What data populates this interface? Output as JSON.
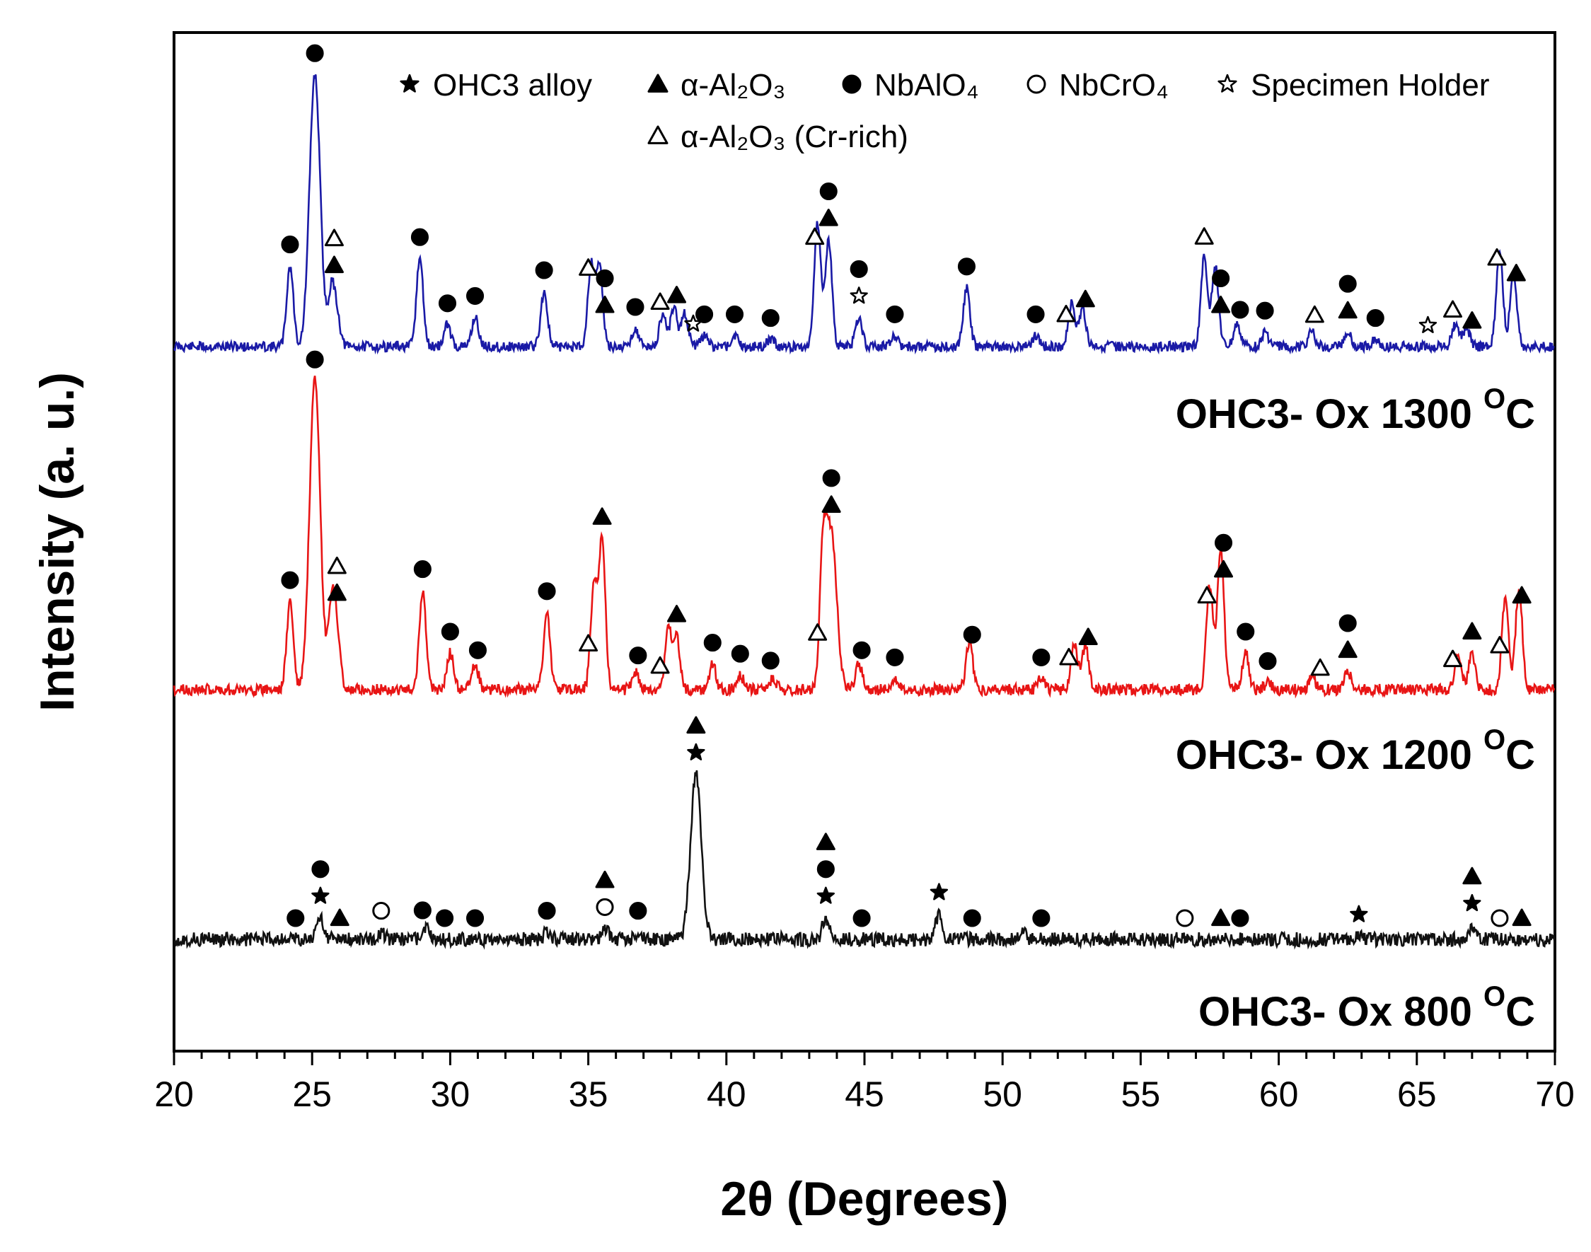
{
  "chart_data": {
    "type": "line",
    "title": "",
    "xlabel": "2θ (Degrees)",
    "ylabel": "Intensity (a. u.)",
    "xlim": [
      20,
      70
    ],
    "xticks": [
      "20",
      "25",
      "30",
      "35",
      "40",
      "45",
      "50",
      "55",
      "60",
      "65",
      "70"
    ],
    "xtick_values": [
      20,
      25,
      30,
      35,
      40,
      45,
      50,
      55,
      60,
      65,
      70
    ],
    "grid": false,
    "legend_position": "top",
    "legend": [
      {
        "symbol": "filled-star",
        "text": "OHC3 alloy"
      },
      {
        "symbol": "filled-triangle",
        "text": "α-Al₂O₃"
      },
      {
        "symbol": "filled-circle",
        "text": "NbAlO₄"
      },
      {
        "symbol": "open-circle",
        "text": "NbCrO₄"
      },
      {
        "symbol": "open-star",
        "text": "Specimen Holder"
      },
      {
        "symbol": "open-triangle",
        "text": "α-Al₂O₃ (Cr-rich)"
      }
    ],
    "series": [
      {
        "name": "OHC3- Ox 1300 °C",
        "label_main": "OHC3- Ox 1300 ",
        "label_sup": "O",
        "label_unit": "C",
        "color": "#1a1aa6",
        "baseline": 0.0,
        "peaks": [
          [
            24.2,
            0.22
          ],
          [
            25.1,
            0.74
          ],
          [
            25.7,
            0.15
          ],
          [
            25.9,
            0.08
          ],
          [
            28.9,
            0.24
          ],
          [
            29.9,
            0.06
          ],
          [
            30.9,
            0.08
          ],
          [
            33.4,
            0.15
          ],
          [
            35.1,
            0.22
          ],
          [
            35.4,
            0.22
          ],
          [
            36.7,
            0.05
          ],
          [
            37.7,
            0.09
          ],
          [
            38.1,
            0.11
          ],
          [
            38.5,
            0.09
          ],
          [
            39.2,
            0.03
          ],
          [
            40.3,
            0.03
          ],
          [
            41.6,
            0.02
          ],
          [
            43.3,
            0.34
          ],
          [
            43.7,
            0.29
          ],
          [
            44.8,
            0.08
          ],
          [
            46.1,
            0.03
          ],
          [
            48.7,
            0.16
          ],
          [
            51.2,
            0.03
          ],
          [
            52.5,
            0.12
          ],
          [
            52.9,
            0.1
          ],
          [
            57.3,
            0.24
          ],
          [
            57.7,
            0.22
          ],
          [
            58.5,
            0.06
          ],
          [
            59.5,
            0.04
          ],
          [
            61.2,
            0.04
          ],
          [
            62.5,
            0.04
          ],
          [
            63.5,
            0.02
          ],
          [
            66.4,
            0.06
          ],
          [
            66.8,
            0.05
          ],
          [
            68.0,
            0.26
          ],
          [
            68.5,
            0.2
          ]
        ],
        "markers": [
          {
            "x": 24.2,
            "symbol": "filled-circle",
            "level": 1
          },
          {
            "x": 25.1,
            "symbol": "filled-circle",
            "level": 1
          },
          {
            "x": 25.8,
            "symbol": "filled-triangle",
            "level": 1
          },
          {
            "x": 25.8,
            "symbol": "open-triangle",
            "level": 2
          },
          {
            "x": 28.9,
            "symbol": "filled-circle",
            "level": 1
          },
          {
            "x": 29.9,
            "symbol": "filled-circle",
            "level": 1
          },
          {
            "x": 30.9,
            "symbol": "filled-circle",
            "level": 1
          },
          {
            "x": 33.4,
            "symbol": "filled-circle",
            "level": 1
          },
          {
            "x": 35.0,
            "symbol": "open-triangle",
            "level": 1
          },
          {
            "x": 35.6,
            "symbol": "filled-triangle",
            "level": 1
          },
          {
            "x": 35.6,
            "symbol": "filled-circle",
            "level": 2
          },
          {
            "x": 36.7,
            "symbol": "filled-circle",
            "level": 1
          },
          {
            "x": 37.6,
            "symbol": "open-triangle",
            "level": 1
          },
          {
            "x": 38.2,
            "symbol": "filled-triangle",
            "level": 1
          },
          {
            "x": 38.8,
            "symbol": "open-star",
            "level": 1
          },
          {
            "x": 39.2,
            "symbol": "filled-circle",
            "level": 1
          },
          {
            "x": 40.3,
            "symbol": "filled-circle",
            "level": 1
          },
          {
            "x": 41.6,
            "symbol": "filled-circle",
            "level": 1
          },
          {
            "x": 43.2,
            "symbol": "open-triangle",
            "level": 1
          },
          {
            "x": 43.7,
            "symbol": "filled-triangle",
            "level": 1
          },
          {
            "x": 43.7,
            "symbol": "filled-circle",
            "level": 2
          },
          {
            "x": 44.8,
            "symbol": "open-star",
            "level": 1
          },
          {
            "x": 44.8,
            "symbol": "filled-circle",
            "level": 2
          },
          {
            "x": 46.1,
            "symbol": "filled-circle",
            "level": 1
          },
          {
            "x": 48.7,
            "symbol": "filled-circle",
            "level": 1
          },
          {
            "x": 51.2,
            "symbol": "filled-circle",
            "level": 1
          },
          {
            "x": 52.3,
            "symbol": "open-triangle",
            "level": 1
          },
          {
            "x": 53.0,
            "symbol": "filled-triangle",
            "level": 1
          },
          {
            "x": 57.3,
            "symbol": "open-triangle",
            "level": 1
          },
          {
            "x": 57.9,
            "symbol": "filled-triangle",
            "level": 1
          },
          {
            "x": 57.9,
            "symbol": "filled-circle",
            "level": 2
          },
          {
            "x": 58.6,
            "symbol": "filled-circle",
            "level": 1
          },
          {
            "x": 59.5,
            "symbol": "filled-circle",
            "level": 1
          },
          {
            "x": 61.3,
            "symbol": "open-triangle",
            "level": 1
          },
          {
            "x": 62.5,
            "symbol": "filled-triangle",
            "level": 1
          },
          {
            "x": 62.5,
            "symbol": "filled-circle",
            "level": 2
          },
          {
            "x": 63.5,
            "symbol": "filled-circle",
            "level": 1
          },
          {
            "x": 65.4,
            "symbol": "open-star",
            "level": 1
          },
          {
            "x": 66.3,
            "symbol": "open-triangle",
            "level": 1
          },
          {
            "x": 67.0,
            "symbol": "filled-triangle",
            "level": 1
          },
          {
            "x": 67.9,
            "symbol": "open-triangle",
            "level": 1
          },
          {
            "x": 68.6,
            "symbol": "filled-triangle",
            "level": 1
          }
        ]
      },
      {
        "name": "OHC3- Ox 1200 °C",
        "label_main": "OHC3- Ox 1200 ",
        "label_sup": "O",
        "label_unit": "C",
        "color": "#e81515",
        "baseline": 0.0,
        "peaks": [
          [
            24.2,
            0.24
          ],
          [
            25.1,
            0.84
          ],
          [
            25.7,
            0.22
          ],
          [
            25.9,
            0.15
          ],
          [
            29.0,
            0.27
          ],
          [
            30.0,
            0.1
          ],
          [
            30.9,
            0.07
          ],
          [
            33.5,
            0.21
          ],
          [
            35.2,
            0.27
          ],
          [
            35.5,
            0.4
          ],
          [
            36.7,
            0.05
          ],
          [
            37.9,
            0.16
          ],
          [
            38.2,
            0.14
          ],
          [
            39.5,
            0.07
          ],
          [
            40.5,
            0.04
          ],
          [
            41.7,
            0.03
          ],
          [
            43.5,
            0.33
          ],
          [
            43.8,
            0.43
          ],
          [
            44.8,
            0.07
          ],
          [
            46.1,
            0.03
          ],
          [
            48.8,
            0.13
          ],
          [
            51.4,
            0.03
          ],
          [
            52.6,
            0.12
          ],
          [
            53.0,
            0.12
          ],
          [
            57.5,
            0.28
          ],
          [
            57.9,
            0.38
          ],
          [
            58.8,
            0.1
          ],
          [
            59.6,
            0.02
          ],
          [
            61.2,
            0.03
          ],
          [
            62.5,
            0.05
          ],
          [
            66.5,
            0.1
          ],
          [
            67.0,
            0.1
          ],
          [
            68.2,
            0.25
          ],
          [
            68.7,
            0.28
          ]
        ],
        "markers": [
          {
            "x": 24.2,
            "symbol": "filled-circle",
            "level": 1
          },
          {
            "x": 25.1,
            "symbol": "filled-circle",
            "level": 1
          },
          {
            "x": 25.9,
            "symbol": "filled-triangle",
            "level": 1
          },
          {
            "x": 25.9,
            "symbol": "open-triangle",
            "level": 2
          },
          {
            "x": 29.0,
            "symbol": "filled-circle",
            "level": 1
          },
          {
            "x": 30.0,
            "symbol": "filled-circle",
            "level": 1
          },
          {
            "x": 31.0,
            "symbol": "filled-circle",
            "level": 1
          },
          {
            "x": 33.5,
            "symbol": "filled-circle",
            "level": 1
          },
          {
            "x": 35.0,
            "symbol": "open-triangle",
            "level": 1
          },
          {
            "x": 35.5,
            "symbol": "filled-triangle",
            "level": 1
          },
          {
            "x": 36.8,
            "symbol": "filled-circle",
            "level": 1
          },
          {
            "x": 37.6,
            "symbol": "open-triangle",
            "level": 1
          },
          {
            "x": 38.2,
            "symbol": "filled-triangle",
            "level": 1
          },
          {
            "x": 39.5,
            "symbol": "filled-circle",
            "level": 1
          },
          {
            "x": 40.5,
            "symbol": "filled-circle",
            "level": 1
          },
          {
            "x": 41.6,
            "symbol": "filled-circle",
            "level": 1
          },
          {
            "x": 43.3,
            "symbol": "open-triangle",
            "level": 1
          },
          {
            "x": 43.8,
            "symbol": "filled-triangle",
            "level": 1
          },
          {
            "x": 43.8,
            "symbol": "filled-circle",
            "level": 2
          },
          {
            "x": 44.9,
            "symbol": "filled-circle",
            "level": 1
          },
          {
            "x": 46.1,
            "symbol": "filled-circle",
            "level": 1
          },
          {
            "x": 48.9,
            "symbol": "filled-circle",
            "level": 1
          },
          {
            "x": 51.4,
            "symbol": "filled-circle",
            "level": 1
          },
          {
            "x": 52.4,
            "symbol": "open-triangle",
            "level": 1
          },
          {
            "x": 53.1,
            "symbol": "filled-triangle",
            "level": 1
          },
          {
            "x": 57.4,
            "symbol": "open-triangle",
            "level": 1
          },
          {
            "x": 58.0,
            "symbol": "filled-triangle",
            "level": 1
          },
          {
            "x": 58.0,
            "symbol": "filled-circle",
            "level": 2
          },
          {
            "x": 58.8,
            "symbol": "filled-circle",
            "level": 1
          },
          {
            "x": 59.6,
            "symbol": "filled-circle",
            "level": 1
          },
          {
            "x": 61.5,
            "symbol": "open-triangle",
            "level": 1
          },
          {
            "x": 62.5,
            "symbol": "filled-triangle",
            "level": 1
          },
          {
            "x": 62.5,
            "symbol": "filled-circle",
            "level": 2
          },
          {
            "x": 66.3,
            "symbol": "open-triangle",
            "level": 1
          },
          {
            "x": 67.0,
            "symbol": "filled-triangle",
            "level": 1
          },
          {
            "x": 68.0,
            "symbol": "open-triangle",
            "level": 1
          },
          {
            "x": 68.8,
            "symbol": "filled-triangle",
            "level": 1
          }
        ]
      },
      {
        "name": "OHC3- Ox 800 °C",
        "label_main": "OHC3- Ox 800 ",
        "label_sup": "O",
        "label_unit": "C",
        "color": "#111111",
        "baseline": 0.0,
        "peaks": [
          [
            25.3,
            0.06
          ],
          [
            27.5,
            0.02
          ],
          [
            29.1,
            0.03
          ],
          [
            33.5,
            0.02
          ],
          [
            35.6,
            0.03
          ],
          [
            36.8,
            0.02
          ],
          [
            38.9,
            0.45
          ],
          [
            43.6,
            0.06
          ],
          [
            47.7,
            0.07
          ],
          [
            50.7,
            0.02
          ],
          [
            62.9,
            0.01
          ],
          [
            67.0,
            0.04
          ]
        ],
        "markers": [
          {
            "x": 24.4,
            "symbol": "filled-circle",
            "level": 1
          },
          {
            "x": 25.3,
            "symbol": "filled-star",
            "level": 1
          },
          {
            "x": 25.3,
            "symbol": "filled-circle",
            "level": 2
          },
          {
            "x": 26.0,
            "symbol": "filled-triangle",
            "level": 1
          },
          {
            "x": 27.5,
            "symbol": "open-circle",
            "level": 1
          },
          {
            "x": 29.0,
            "symbol": "filled-circle",
            "level": 1
          },
          {
            "x": 29.8,
            "symbol": "filled-circle",
            "level": 1
          },
          {
            "x": 30.9,
            "symbol": "filled-circle",
            "level": 1
          },
          {
            "x": 33.5,
            "symbol": "filled-circle",
            "level": 1
          },
          {
            "x": 35.6,
            "symbol": "open-circle",
            "level": 1
          },
          {
            "x": 35.6,
            "symbol": "filled-triangle",
            "level": 2
          },
          {
            "x": 36.8,
            "symbol": "filled-circle",
            "level": 1
          },
          {
            "x": 38.9,
            "symbol": "filled-star",
            "level": 1
          },
          {
            "x": 38.9,
            "symbol": "filled-triangle",
            "level": 2
          },
          {
            "x": 43.6,
            "symbol": "filled-star",
            "level": 1
          },
          {
            "x": 43.6,
            "symbol": "filled-circle",
            "level": 2
          },
          {
            "x": 43.6,
            "symbol": "filled-triangle",
            "level": 3
          },
          {
            "x": 44.9,
            "symbol": "filled-circle",
            "level": 1
          },
          {
            "x": 47.7,
            "symbol": "filled-star",
            "level": 1
          },
          {
            "x": 48.9,
            "symbol": "filled-circle",
            "level": 1
          },
          {
            "x": 51.4,
            "symbol": "filled-circle",
            "level": 1
          },
          {
            "x": 56.6,
            "symbol": "open-circle",
            "level": 1
          },
          {
            "x": 57.9,
            "symbol": "filled-triangle",
            "level": 1
          },
          {
            "x": 58.6,
            "symbol": "filled-circle",
            "level": 1
          },
          {
            "x": 62.9,
            "symbol": "filled-star",
            "level": 1
          },
          {
            "x": 67.0,
            "symbol": "filled-star",
            "level": 1
          },
          {
            "x": 67.0,
            "symbol": "filled-triangle",
            "level": 2
          },
          {
            "x": 68.0,
            "symbol": "open-circle",
            "level": 1
          },
          {
            "x": 68.8,
            "symbol": "filled-triangle",
            "level": 1
          }
        ]
      }
    ]
  }
}
